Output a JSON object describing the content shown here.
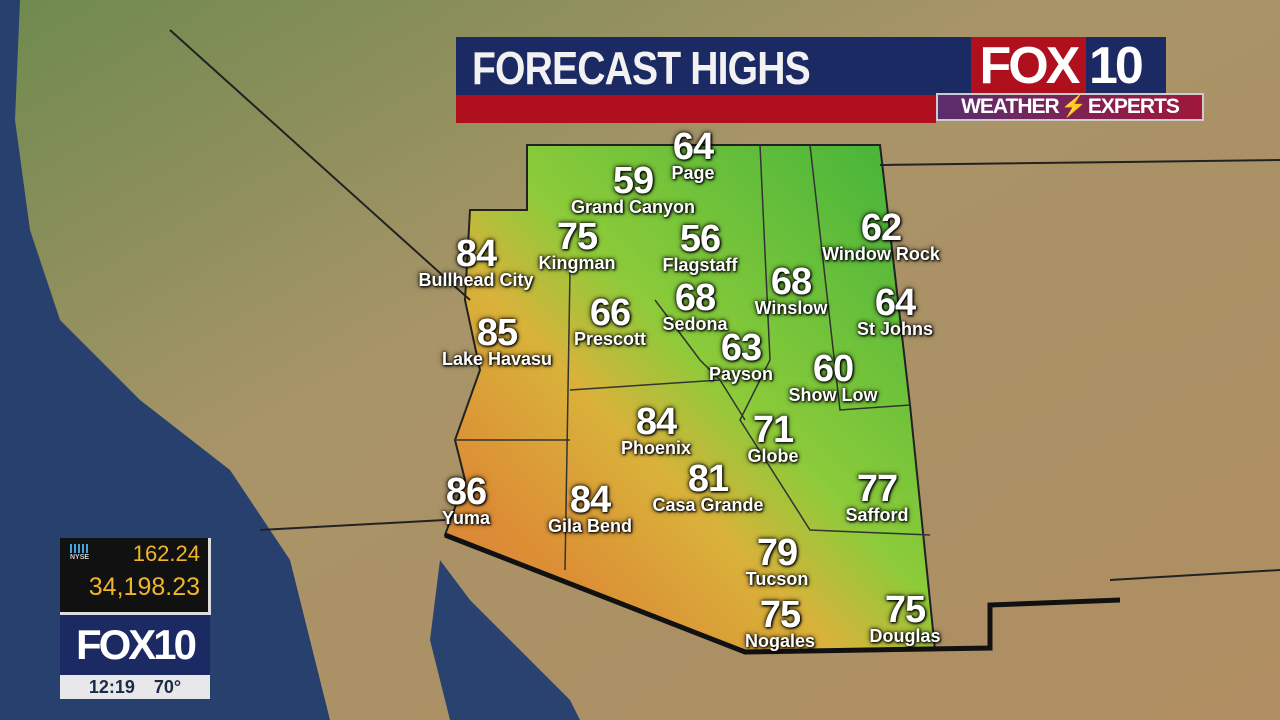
{
  "header": {
    "title": "FORECAST HIGHS",
    "logo_fox": "FOX",
    "logo_num": "10",
    "weather": "WEATHER",
    "experts": "EXPERTS",
    "bolt": "⚡"
  },
  "cities": [
    {
      "name": "Page",
      "high": "64"
    },
    {
      "name": "Grand Canyon",
      "high": "59"
    },
    {
      "name": "Kingman",
      "high": "75"
    },
    {
      "name": "Flagstaff",
      "high": "56"
    },
    {
      "name": "Bullhead City",
      "high": "84"
    },
    {
      "name": "Window Rock",
      "high": "62"
    },
    {
      "name": "Winslow",
      "high": "68"
    },
    {
      "name": "Sedona",
      "high": "68"
    },
    {
      "name": "Prescott",
      "high": "66"
    },
    {
      "name": "St Johns",
      "high": "64"
    },
    {
      "name": "Lake Havasu",
      "high": "85"
    },
    {
      "name": "Payson",
      "high": "63"
    },
    {
      "name": "Show Low",
      "high": "60"
    },
    {
      "name": "Phoenix",
      "high": "84"
    },
    {
      "name": "Globe",
      "high": "71"
    },
    {
      "name": "Casa Grande",
      "high": "81"
    },
    {
      "name": "Yuma",
      "high": "86"
    },
    {
      "name": "Gila Bend",
      "high": "84"
    },
    {
      "name": "Safford",
      "high": "77"
    },
    {
      "name": "Tucson",
      "high": "79"
    },
    {
      "name": "Nogales",
      "high": "75"
    },
    {
      "name": "Douglas",
      "high": "75"
    }
  ],
  "ticker": {
    "exchange": "NYSE",
    "value1": "162.24",
    "value2": "34,198.23"
  },
  "bug": {
    "logo": "FOX10",
    "time": "12:19",
    "temp": "70°"
  },
  "colors": {
    "cool": "#4fb83a",
    "warm": "#dc8f35",
    "header_blue": "#1c2a63",
    "header_red": "#b0101e",
    "ticker_gold": "#f0b52a"
  }
}
